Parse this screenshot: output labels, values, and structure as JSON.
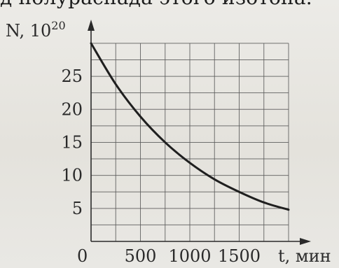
{
  "header": {
    "caption_fragment": "д полураспада этого изотопа."
  },
  "chart_data": {
    "type": "line",
    "title": "",
    "ylabel": "N, 10",
    "ylabel_exponent": "20",
    "xlabel": "t, мин",
    "origin_label": "0",
    "xlim": [
      0,
      2000
    ],
    "ylim": [
      0,
      32
    ],
    "x_ticks": [
      500,
      1000,
      1500
    ],
    "x_tick_labels": [
      "500",
      "1000",
      "1500"
    ],
    "y_ticks": [
      5,
      10,
      15,
      20,
      25
    ],
    "y_tick_labels": [
      "5",
      "10",
      "15",
      "20",
      "25"
    ],
    "grid": true,
    "series": [
      {
        "x": [
          0,
          250,
          500,
          750,
          1000,
          1250,
          1500,
          1750,
          2000
        ],
        "y": [
          30,
          23.8,
          18.9,
          15.0,
          11.9,
          9.4,
          7.5,
          5.9,
          4.8
        ]
      }
    ],
    "colors": {
      "grid": "#5a5a5a",
      "axes": "#2a2a2a",
      "curve": "#1f1f1f"
    }
  }
}
